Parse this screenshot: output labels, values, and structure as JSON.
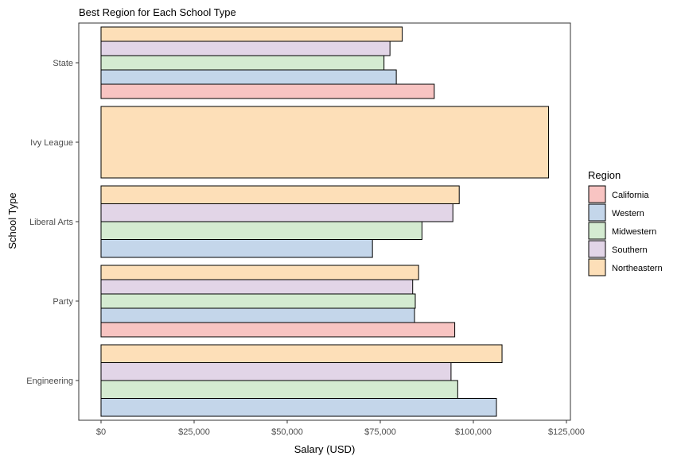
{
  "chart_data": {
    "type": "bar",
    "orientation": "horizontal",
    "title": "Best Region for Each School Type",
    "xlabel": "Salary (USD)",
    "ylabel": "School Type",
    "xlim": [
      0,
      125000
    ],
    "x_ticks": [
      0,
      25000,
      50000,
      75000,
      100000,
      125000
    ],
    "x_tick_labels": [
      "$0",
      "$25,000",
      "$50,000",
      "$75,000",
      "$100,000",
      "$125,000"
    ],
    "categories": [
      "Engineering",
      "Party",
      "Liberal Arts",
      "Ivy League",
      "State"
    ],
    "legend": {
      "title": "Region",
      "position": "right",
      "entries": [
        {
          "name": "California",
          "color": "#F8C4C2"
        },
        {
          "name": "Western",
          "color": "#C4D6EA"
        },
        {
          "name": "Midwestern",
          "color": "#D4EBD1"
        },
        {
          "name": "Southern",
          "color": "#E2D5E7"
        },
        {
          "name": "Northeastern",
          "color": "#FDDFB8"
        }
      ]
    },
    "series": [
      {
        "name": "California",
        "values": [
          null,
          95000,
          null,
          null,
          89500
        ]
      },
      {
        "name": "Western",
        "values": [
          106200,
          84200,
          72900,
          null,
          79300
        ]
      },
      {
        "name": "Midwestern",
        "values": [
          95800,
          84400,
          86200,
          null,
          76000
        ]
      },
      {
        "name": "Southern",
        "values": [
          94000,
          83700,
          94500,
          null,
          77600
        ]
      },
      {
        "name": "Northeastern",
        "values": [
          107700,
          85300,
          96200,
          120200,
          80900
        ]
      }
    ]
  }
}
